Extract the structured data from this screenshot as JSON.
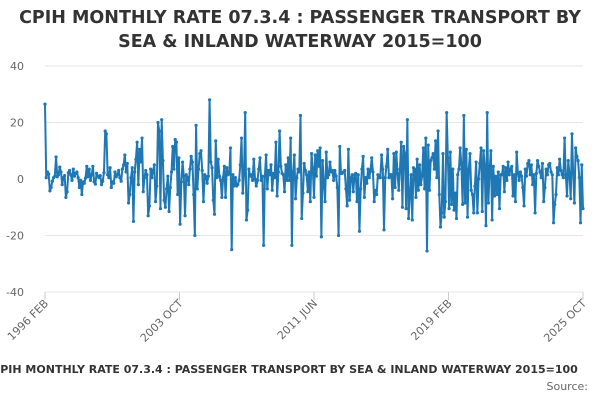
{
  "title_lines": [
    "CPIH MONTHLY RATE 07.3.4 : PASSENGER TRANSPORT BY",
    "SEA & INLAND WATERWAY 2015=100"
  ],
  "footer_title": "CPIH MONTHLY RATE 07.3.4 : PASSENGER TRANSPORT BY SEA & INLAND WATERWAY 2015=100",
  "source_label": "Source:",
  "colors": {
    "series": "#1f78b4",
    "grid": "#e6e6e6",
    "axis_text": "#666666"
  },
  "chart_data": {
    "type": "line",
    "title": "CPIH MONTHLY RATE 07.3.4 : PASSENGER TRANSPORT BY SEA & INLAND WATERWAY 2015=100",
    "xlabel": "",
    "ylabel": "",
    "ylim": [
      -40,
      40
    ],
    "yticks": [
      -40,
      -20,
      0,
      20,
      40
    ],
    "x_start": "1996 FEB",
    "x_end": "2025 OCT",
    "xtick_labels": [
      "1996 FEB",
      "2003 OCT",
      "2011 JUN",
      "2019 FEB",
      "2025 OCT"
    ],
    "grid": "horizontal",
    "series": [
      {
        "values": [
          26.5,
          0.5,
          2.5,
          1.8,
          -4.2,
          -3.0,
          -0.8,
          0.5,
          1.0,
          7.8,
          0.8,
          1.5,
          4.2,
          2.5,
          -2.0,
          0.5,
          1.2,
          -6.5,
          -4.5,
          2.2,
          3.0,
          1.5,
          -0.5,
          3.5,
          1.0,
          2.0,
          2.5,
          0.5,
          -3.0,
          -0.5,
          -5.5,
          -1.0,
          -1.5,
          0.3,
          4.5,
          0.8,
          3.5,
          -0.5,
          1.5,
          4.5,
          -1.0,
          -1.8,
          2.0,
          1.0,
          0.5,
          1.2,
          -2.0,
          -0.8,
          2.2,
          17.0,
          16.0,
          1.5,
          0.5,
          4.0,
          -3.0,
          -1.0,
          -1.5,
          2.5,
          0.8,
          1.5,
          3.0,
          0.5,
          -0.8,
          3.5,
          5.0,
          8.5,
          2.5,
          5.5,
          -8.5,
          -5.5,
          0.5,
          4.0,
          -15.0,
          2.5,
          7.0,
          13.0,
          -2.0,
          10.5,
          6.0,
          14.5,
          -4.5,
          0.5,
          3.0,
          1.5,
          -13.0,
          -9.5,
          3.5,
          0.5,
          3.0,
          5.0,
          -8.0,
          -2.5,
          20.0,
          17.0,
          -10.5,
          21.0,
          6.5,
          -7.5,
          -10.0,
          -3.5,
          1.0,
          -11.5,
          -3.0,
          2.5,
          11.5,
          3.5,
          14.0,
          13.0,
          -5.5,
          7.5,
          -16.0,
          -1.0,
          6.0,
          1.0,
          -13.0,
          1.5,
          0.5,
          -2.0,
          3.5,
          8.0,
          6.0,
          -5.5,
          -20.0,
          19.0,
          -3.5,
          3.5,
          9.0,
          10.0,
          3.0,
          -8.0,
          1.5,
          1.0,
          -1.5,
          1.0,
          28.0,
          6.0,
          4.0,
          -7.5,
          -12.5,
          13.5,
          0.5,
          7.0,
          1.0,
          -0.5,
          -6.5,
          0.5,
          4.5,
          -6.5,
          4.0,
          1.5,
          2.0,
          11.0,
          -25.0,
          1.5,
          -2.5,
          0.5,
          -2.5,
          -2.0,
          -0.5,
          5.0,
          14.5,
          -5.0,
          1.5,
          23.5,
          -14.5,
          -11.0,
          3.5,
          1.0,
          1.5,
          -0.5,
          7.0,
          0.0,
          -2.5,
          -0.5,
          3.5,
          7.5,
          -0.5,
          1.0,
          -23.5,
          1.0,
          8.5,
          -3.5,
          3.0,
          1.5,
          5.0,
          -4.0,
          2.0,
          0.5,
          13.0,
          -6.0,
          2.5,
          17.0,
          4.5,
          2.0,
          1.5,
          -4.5,
          5.0,
          -0.5,
          7.5,
          -0.5,
          14.5,
          -23.5,
          2.5,
          8.5,
          -7.0,
          0.5,
          3.5,
          2.5,
          22.5,
          -14.0,
          -5.0,
          5.5,
          3.0,
          1.5,
          -4.5,
          2.5,
          -8.0,
          9.0,
          4.0,
          -6.5,
          8.5,
          1.0,
          10.0,
          4.5,
          11.0,
          -20.5,
          6.5,
          -1.5,
          -8.0,
          9.5,
          0.5,
          1.5,
          6.0,
          2.5,
          3.0,
          -0.5,
          3.0,
          1.0,
          -3.0,
          -20.0,
          11.5,
          2.0,
          2.0,
          2.5,
          3.0,
          -3.5,
          -9.5,
          10.5,
          -7.5,
          0.5,
          1.5,
          -4.5,
          1.5,
          2.0,
          -8.0,
          1.5,
          -18.5,
          -3.5,
          3.5,
          8.0,
          -6.5,
          0.5,
          -1.5,
          3.5,
          0.5,
          3.0,
          7.5,
          2.5,
          -8.0,
          -4.0,
          -5.5,
          1.5,
          0.5,
          0.5,
          8.5,
          3.5,
          -18.0,
          0.5,
          4.5,
          10.5,
          0.5,
          1.5,
          1.5,
          -7.0,
          9.0,
          -3.0,
          9.5,
          2.0,
          -4.0,
          3.5,
          13.0,
          -10.0,
          11.5,
          9.0,
          -10.5,
          21.0,
          -14.0,
          -6.0,
          1.5,
          -14.5,
          4.0,
          3.5,
          -6.5,
          7.0,
          -4.0,
          5.0,
          -2.0,
          1.0,
          11.0,
          -3.5,
          14.5,
          -25.5,
          12.0,
          -4.0,
          6.5,
          7.5,
          9.0,
          3.5,
          13.5,
          0.5,
          17.0,
          -5.5,
          -17.0,
          -12.0,
          9.0,
          -13.5,
          -8.0,
          23.5,
          7.5,
          -10.5,
          9.5,
          -9.0,
          3.5,
          -11.0,
          -5.0,
          -14.0,
          1.5,
          3.5,
          11.0,
          5.0,
          -9.0,
          22.5,
          -8.5,
          10.5,
          -13.5,
          3.5,
          9.0,
          -4.0,
          -5.5,
          -12.0,
          -2.5,
          6.0,
          -12.0,
          0.0,
          5.5,
          11.0,
          -11.5,
          10.0,
          4.5,
          -16.5,
          23.5,
          -8.5,
          3.5,
          10.0,
          -14.5,
          4.5,
          -6.0,
          1.0,
          -5.5,
          2.5,
          -10.5,
          1.5,
          1.5,
          4.5,
          -4.5,
          4.0,
          -0.5,
          6.0,
          1.5,
          3.5,
          4.5,
          -6.0,
          1.5,
          -8.0,
          9.5,
          2.0,
          -0.5,
          2.5,
          1.0,
          -3.0,
          -9.5,
          3.5,
          1.0,
          5.5,
          6.5,
          1.5,
          5.0,
          -2.0,
          1.5,
          -12.0,
          2.0,
          6.5,
          4.5,
          2.5,
          0.5,
          5.5,
          -8.0,
          -3.0,
          3.5,
          1.5,
          5.0,
          5.5,
          2.5,
          1.5,
          -15.5,
          -9.0,
          -5.5,
          4.0,
          1.5,
          7.0,
          3.0,
          1.5,
          0.5,
          14.5,
          1.5,
          -6.0,
          6.5,
          1.5,
          -7.0,
          16.0,
          2.0,
          -8.5,
          11.0,
          8.0,
          6.5,
          0.5,
          -15.5,
          5.0,
          -10.5
        ]
      }
    ]
  }
}
